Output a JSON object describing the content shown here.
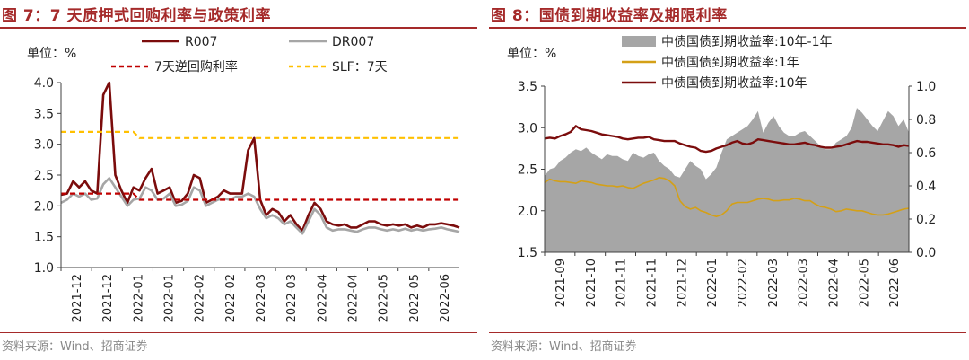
{
  "left": {
    "title": "图 7：7 天质押式回购利率与政策利率",
    "source": "资料来源：Wind、招商证券",
    "chart_data": {
      "type": "line",
      "unit_label": "单位：%",
      "ylim": [
        1.0,
        4.0
      ],
      "yticks": [
        "4.0",
        "3.5",
        "3.0",
        "2.5",
        "2.0",
        "1.5",
        "1.0"
      ],
      "xticks": [
        "2021-12",
        "2021-12",
        "2022-01",
        "2022-01",
        "2022-02",
        "2022-02",
        "2022-03",
        "2022-03",
        "2022-04",
        "2022-04",
        "2022-05",
        "2022-05",
        "2022-06"
      ],
      "grid": false,
      "legend": "top",
      "x": [
        0,
        3,
        6,
        9,
        12,
        15,
        18,
        21,
        24,
        27,
        30,
        33,
        36,
        39,
        42,
        45,
        48,
        51,
        54,
        57,
        60,
        63,
        66,
        69,
        72,
        75,
        78,
        81,
        84,
        87,
        90,
        93,
        96,
        99,
        102,
        105,
        108,
        111,
        114,
        117,
        120,
        123,
        126,
        129,
        132,
        135,
        138,
        141,
        144,
        147,
        150,
        153,
        156,
        159,
        162,
        165,
        168,
        171,
        174,
        177,
        180,
        183,
        186,
        189,
        192,
        195,
        198
      ],
      "series": [
        {
          "name": "R007",
          "color": "#7b0c0c",
          "width": 2.6,
          "values": [
            2.18,
            2.2,
            2.4,
            2.3,
            2.4,
            2.25,
            2.2,
            3.8,
            4.0,
            2.5,
            2.25,
            2.05,
            2.3,
            2.25,
            2.45,
            2.6,
            2.2,
            2.25,
            2.3,
            2.05,
            2.08,
            2.2,
            2.5,
            2.45,
            2.05,
            2.1,
            2.15,
            2.25,
            2.2,
            2.2,
            2.2,
            2.9,
            3.1,
            2.1,
            1.85,
            1.95,
            1.9,
            1.75,
            1.85,
            1.7,
            1.6,
            1.85,
            2.05,
            1.95,
            1.75,
            1.7,
            1.68,
            1.7,
            1.65,
            1.65,
            1.7,
            1.75,
            1.75,
            1.7,
            1.68,
            1.7,
            1.68,
            1.7,
            1.65,
            1.68,
            1.65,
            1.7,
            1.7,
            1.72,
            1.7,
            1.68,
            1.65
          ]
        },
        {
          "name": "DR007",
          "color": "#a6a6a6",
          "width": 2.6,
          "values": [
            2.05,
            2.1,
            2.2,
            2.15,
            2.2,
            2.1,
            2.12,
            2.35,
            2.45,
            2.3,
            2.15,
            2.0,
            2.1,
            2.12,
            2.3,
            2.25,
            2.1,
            2.12,
            2.2,
            2.0,
            2.02,
            2.08,
            2.3,
            2.25,
            2.0,
            2.05,
            2.1,
            2.12,
            2.1,
            2.15,
            2.15,
            2.2,
            2.15,
            1.95,
            1.8,
            1.85,
            1.8,
            1.7,
            1.75,
            1.65,
            1.55,
            1.75,
            1.95,
            1.85,
            1.65,
            1.6,
            1.62,
            1.62,
            1.6,
            1.58,
            1.62,
            1.65,
            1.65,
            1.62,
            1.6,
            1.62,
            1.6,
            1.63,
            1.6,
            1.62,
            1.6,
            1.62,
            1.63,
            1.65,
            1.62,
            1.6,
            1.58
          ]
        },
        {
          "name": "7天逆回购利率",
          "color": "#c00000",
          "width": 2.2,
          "dash": "6,4",
          "values": [
            2.2,
            2.2,
            2.2,
            2.2,
            2.2,
            2.2,
            2.2,
            2.2,
            2.2,
            2.2,
            2.2,
            2.2,
            2.2,
            2.1,
            2.1,
            2.1,
            2.1,
            2.1,
            2.1,
            2.1,
            2.1,
            2.1,
            2.1,
            2.1,
            2.1,
            2.1,
            2.1,
            2.1,
            2.1,
            2.1,
            2.1,
            2.1,
            2.1,
            2.1,
            2.1,
            2.1,
            2.1,
            2.1,
            2.1,
            2.1,
            2.1,
            2.1,
            2.1,
            2.1,
            2.1,
            2.1,
            2.1,
            2.1,
            2.1,
            2.1,
            2.1,
            2.1,
            2.1,
            2.1,
            2.1,
            2.1,
            2.1,
            2.1,
            2.1,
            2.1,
            2.1,
            2.1,
            2.1,
            2.1,
            2.1,
            2.1,
            2.1
          ]
        },
        {
          "name": "SLF：7天",
          "color": "#ffc000",
          "width": 2.2,
          "dash": "6,4",
          "values": [
            3.2,
            3.2,
            3.2,
            3.2,
            3.2,
            3.2,
            3.2,
            3.2,
            3.2,
            3.2,
            3.2,
            3.2,
            3.2,
            3.1,
            3.1,
            3.1,
            3.1,
            3.1,
            3.1,
            3.1,
            3.1,
            3.1,
            3.1,
            3.1,
            3.1,
            3.1,
            3.1,
            3.1,
            3.1,
            3.1,
            3.1,
            3.1,
            3.1,
            3.1,
            3.1,
            3.1,
            3.1,
            3.1,
            3.1,
            3.1,
            3.1,
            3.1,
            3.1,
            3.1,
            3.1,
            3.1,
            3.1,
            3.1,
            3.1,
            3.1,
            3.1,
            3.1,
            3.1,
            3.1,
            3.1,
            3.1,
            3.1,
            3.1,
            3.1,
            3.1,
            3.1,
            3.1,
            3.1,
            3.1,
            3.1,
            3.1,
            3.1
          ]
        }
      ]
    }
  },
  "right": {
    "title": "图 8：国债到期收益率及期限利率",
    "source": "资料来源：Wind、招商证券",
    "chart_data": {
      "type": "line",
      "unit_label": "单位：%",
      "ylim": [
        1.5,
        3.5
      ],
      "y2lim": [
        0.0,
        1.0
      ],
      "yticks": [
        "3.5",
        "3.0",
        "2.5",
        "2.0",
        "1.5"
      ],
      "y2ticks": [
        "1.0",
        "0.8",
        "0.6",
        "0.4",
        "0.2",
        "0.0"
      ],
      "xticks": [
        "2021-09",
        "2021-10",
        "2021-11",
        "2021-11",
        "2021-12",
        "2022-01",
        "2022-02",
        "2022-03",
        "2022-03",
        "2022-04",
        "2022-05",
        "2022-06"
      ],
      "grid": false,
      "legend": "top",
      "x": [
        0,
        4,
        8,
        12,
        16,
        20,
        24,
        28,
        32,
        36,
        40,
        44,
        48,
        52,
        56,
        60,
        64,
        68,
        72,
        76,
        80,
        84,
        88,
        92,
        96,
        100,
        104,
        108,
        112,
        116,
        120,
        124,
        128,
        132,
        136,
        140,
        144,
        148,
        152,
        156,
        160,
        164,
        168,
        172,
        176,
        180,
        184,
        188,
        192,
        196,
        200,
        204,
        208,
        212,
        216,
        220,
        224,
        228,
        232,
        236,
        240,
        244,
        248,
        252,
        256,
        260,
        264,
        268,
        272,
        276,
        280
      ],
      "series": [
        {
          "name": "中债国债到期收益率:10年-1年",
          "axis": "right",
          "type": "area",
          "color": "#a6a6a6",
          "values": [
            0.46,
            0.5,
            0.51,
            0.55,
            0.57,
            0.6,
            0.62,
            0.61,
            0.63,
            0.6,
            0.58,
            0.56,
            0.59,
            0.58,
            0.58,
            0.56,
            0.55,
            0.6,
            0.58,
            0.57,
            0.59,
            0.6,
            0.55,
            0.52,
            0.5,
            0.46,
            0.45,
            0.5,
            0.55,
            0.52,
            0.5,
            0.44,
            0.47,
            0.51,
            0.6,
            0.68,
            0.7,
            0.72,
            0.74,
            0.76,
            0.8,
            0.85,
            0.72,
            0.78,
            0.82,
            0.76,
            0.72,
            0.7,
            0.7,
            0.72,
            0.73,
            0.7,
            0.67,
            0.64,
            0.62,
            0.62,
            0.66,
            0.68,
            0.7,
            0.75,
            0.87,
            0.84,
            0.8,
            0.76,
            0.73,
            0.79,
            0.85,
            0.82,
            0.76,
            0.8,
            0.72
          ]
        },
        {
          "name": "中债国债到期收益率:1年",
          "axis": "left",
          "color": "#d4a017",
          "width": 1.6,
          "values": [
            2.34,
            2.38,
            2.36,
            2.35,
            2.35,
            2.34,
            2.33,
            2.36,
            2.35,
            2.34,
            2.32,
            2.31,
            2.3,
            2.3,
            2.29,
            2.3,
            2.28,
            2.27,
            2.3,
            2.33,
            2.35,
            2.37,
            2.4,
            2.39,
            2.36,
            2.3,
            2.12,
            2.05,
            2.02,
            2.04,
            2.0,
            1.98,
            1.95,
            1.93,
            1.95,
            2.0,
            2.08,
            2.1,
            2.1,
            2.1,
            2.12,
            2.14,
            2.15,
            2.14,
            2.12,
            2.12,
            2.13,
            2.13,
            2.15,
            2.14,
            2.12,
            2.12,
            2.08,
            2.05,
            2.04,
            2.02,
            1.99,
            2.0,
            2.02,
            2.01,
            2.0,
            2.0,
            1.98,
            1.96,
            1.95,
            1.95,
            1.96,
            1.98,
            2.0,
            2.02,
            2.03
          ]
        },
        {
          "name": "中债国债到期收益率:10年",
          "axis": "left",
          "color": "#7b0c0c",
          "width": 2.4,
          "values": [
            2.87,
            2.88,
            2.87,
            2.9,
            2.92,
            2.95,
            3.02,
            2.98,
            2.97,
            2.96,
            2.94,
            2.92,
            2.91,
            2.9,
            2.89,
            2.87,
            2.86,
            2.87,
            2.88,
            2.88,
            2.89,
            2.86,
            2.85,
            2.84,
            2.84,
            2.84,
            2.81,
            2.79,
            2.77,
            2.76,
            2.72,
            2.71,
            2.72,
            2.75,
            2.77,
            2.79,
            2.82,
            2.84,
            2.81,
            2.8,
            2.82,
            2.86,
            2.85,
            2.84,
            2.83,
            2.82,
            2.81,
            2.8,
            2.8,
            2.81,
            2.82,
            2.8,
            2.79,
            2.77,
            2.76,
            2.76,
            2.77,
            2.78,
            2.8,
            2.82,
            2.84,
            2.83,
            2.83,
            2.82,
            2.81,
            2.8,
            2.8,
            2.79,
            2.77,
            2.79,
            2.78
          ]
        }
      ]
    }
  }
}
